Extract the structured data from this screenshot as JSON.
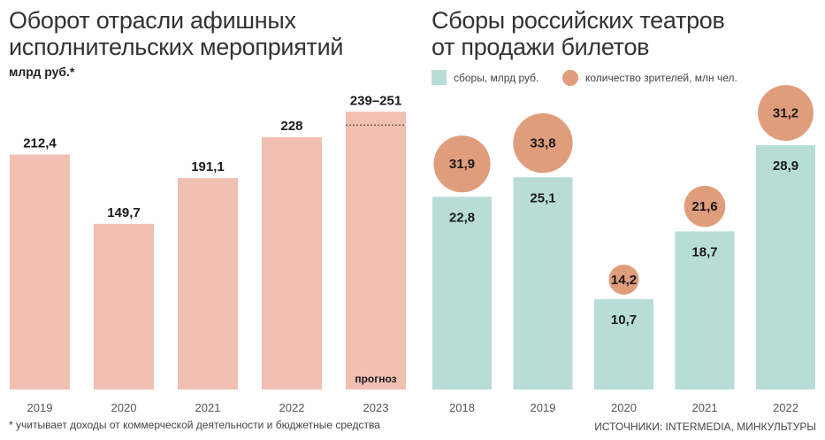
{
  "left": {
    "title_line1": "Оборот отрасли афишных",
    "title_line2": "исполнительских мероприятий",
    "unit": "млрд руб.*",
    "footnote": "* учитывает доходы от коммерческой деятельности и бюджетные средства"
  },
  "right": {
    "title_line1": "Сборы российских театров",
    "title_line2": "от продажи билетов",
    "legend_bars": "сборы, млрд руб.",
    "legend_circles": "количество зрителей, млн чел.",
    "source": "ИСТОЧНИКИ: INTERMEDIA, МИНКУЛЬТУРЫ"
  },
  "colors": {
    "left_bar": "#f2bfb3",
    "right_bar": "#b8ddd6",
    "circle": "#e09d7c"
  },
  "chart_data": [
    {
      "type": "bar",
      "title": "Оборот отрасли афишных исполнительских мероприятий",
      "ylabel": "млрд руб.*",
      "categories": [
        "2019",
        "2020",
        "2021",
        "2022",
        "2023"
      ],
      "values": [
        212.4,
        149.7,
        191.1,
        228,
        251
      ],
      "labels": [
        "212,4",
        "149,7",
        "191,1",
        "228",
        "239–251"
      ],
      "forecast": {
        "category": "2023",
        "low": 239,
        "high": 251,
        "note": "прогноз"
      },
      "ylim": [
        0,
        260
      ],
      "grid": false
    },
    {
      "type": "bar",
      "title": "Сборы российских театров от продажи билетов",
      "categories": [
        "2018",
        "2019",
        "2020",
        "2021",
        "2022"
      ],
      "series": [
        {
          "name": "сборы, млрд руб.",
          "values": [
            22.8,
            25.1,
            10.7,
            18.7,
            28.9
          ],
          "labels": [
            "22,8",
            "25,1",
            "10,7",
            "18,7",
            "28,9"
          ]
        },
        {
          "name": "количество зрителей, млн чел.",
          "values": [
            31.9,
            33.8,
            14.2,
            21.6,
            31.2
          ],
          "labels": [
            "31,9",
            "33,8",
            "14,2",
            "21,6",
            "31,2"
          ]
        }
      ],
      "ylim": [
        0,
        34
      ],
      "grid": false,
      "legend": "top-left"
    }
  ]
}
